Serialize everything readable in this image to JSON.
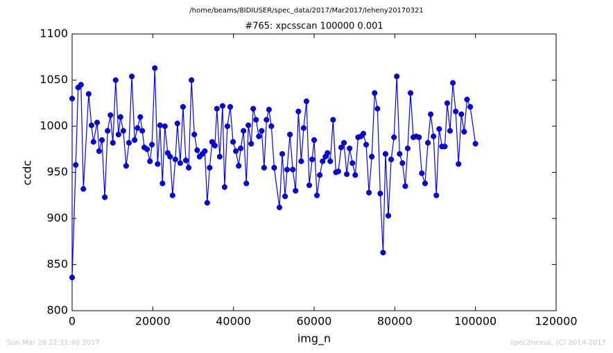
{
  "chart_data": {
    "type": "line",
    "suptitle": "/home/beams/8IDIUSER/spec_data/2017/Mar2017/leheny20170321",
    "title": "#765: xpcsscan 100000 0.001",
    "x_label": "img_n",
    "y_label": "ccdc",
    "footer_left": "Sun Mar 26 22:11:48 2017",
    "footer_right": "spec2nexus, (C) 2014-2017",
    "xlim": [
      0,
      120000
    ],
    "ylim": [
      800,
      1100
    ],
    "xticks": [
      0,
      20000,
      40000,
      60000,
      80000,
      100000,
      120000
    ],
    "yticks": [
      800,
      850,
      900,
      950,
      1000,
      1050,
      1100
    ],
    "grid": false,
    "color": "#0000ff",
    "x": [
      0,
      0,
      900,
      1500,
      2200,
      2800,
      4100,
      4800,
      5300,
      6200,
      6700,
      7400,
      8100,
      8800,
      9500,
      10100,
      10800,
      11500,
      12000,
      12700,
      13400,
      14100,
      14800,
      15500,
      16200,
      16900,
      17400,
      17900,
      18600,
      19300,
      19800,
      20500,
      21200,
      21800,
      22400,
      23000,
      23700,
      24300,
      24900,
      25600,
      26100,
      26800,
      27500,
      28200,
      28900,
      29600,
      30300,
      31000,
      31600,
      32300,
      32900,
      33500,
      34100,
      34700,
      35400,
      35900,
      36600,
      37300,
      37800,
      38500,
      39200,
      39900,
      40600,
      41300,
      41800,
      42500,
      43200,
      43700,
      44400,
      44900,
      45600,
      46300,
      47000,
      47600,
      48200,
      48800,
      49400,
      50100,
      51400,
      52100,
      52800,
      53300,
      54000,
      54700,
      55400,
      56100,
      56800,
      57400,
      58100,
      58800,
      59500,
      60000,
      60700,
      61400,
      62100,
      62800,
      63300,
      64000,
      64700,
      65400,
      66000,
      66700,
      67400,
      68100,
      68800,
      69500,
      70200,
      70900,
      71600,
      72200,
      72900,
      73600,
      74300,
      75000,
      75700,
      76400,
      77100,
      77700,
      78400,
      79100,
      79800,
      80500,
      81200,
      81900,
      82600,
      83200,
      83900,
      84600,
      85300,
      86000,
      86700,
      87500,
      88200,
      88900,
      89600,
      90300,
      91000,
      91700,
      92400,
      93000,
      93700,
      94400,
      95100,
      95800,
      96500,
      97200,
      97900,
      98700,
      100000
    ],
    "values": [
      1030,
      836,
      958,
      1042,
      1045,
      932,
      1035,
      1001,
      983,
      1004,
      973,
      985,
      923,
      995,
      1012,
      982,
      1050,
      991,
      1010,
      995,
      957,
      982,
      1054,
      985,
      998,
      1010,
      995,
      977,
      975,
      962,
      980,
      1063,
      959,
      1001,
      938,
      1000,
      971,
      967,
      925,
      964,
      1003,
      960,
      1021,
      963,
      955,
      1050,
      991,
      974,
      967,
      970,
      973,
      917,
      955,
      983,
      979,
      1019,
      967,
      1022,
      934,
      1000,
      1021,
      983,
      973,
      957,
      976,
      995,
      938,
      1001,
      981,
      1019,
      1007,
      989,
      995,
      955,
      1007,
      1018,
      1000,
      955,
      912,
      970,
      924,
      953,
      991,
      953,
      930,
      1016,
      962,
      998,
      1027,
      936,
      964,
      985,
      925,
      947,
      962,
      967,
      971,
      962,
      1007,
      950,
      951,
      977,
      982,
      948,
      976,
      960,
      947,
      988,
      989,
      992,
      980,
      928,
      967,
      1036,
      1019,
      927,
      863,
      970,
      903,
      964,
      988,
      1054,
      970,
      960,
      935,
      976,
      1036,
      988,
      989,
      988,
      949,
      938,
      982,
      1013,
      989,
      925,
      997,
      978,
      978,
      1025,
      995,
      1047,
      1016,
      959,
      1013,
      994,
      1029,
      1021,
      981
    ]
  }
}
